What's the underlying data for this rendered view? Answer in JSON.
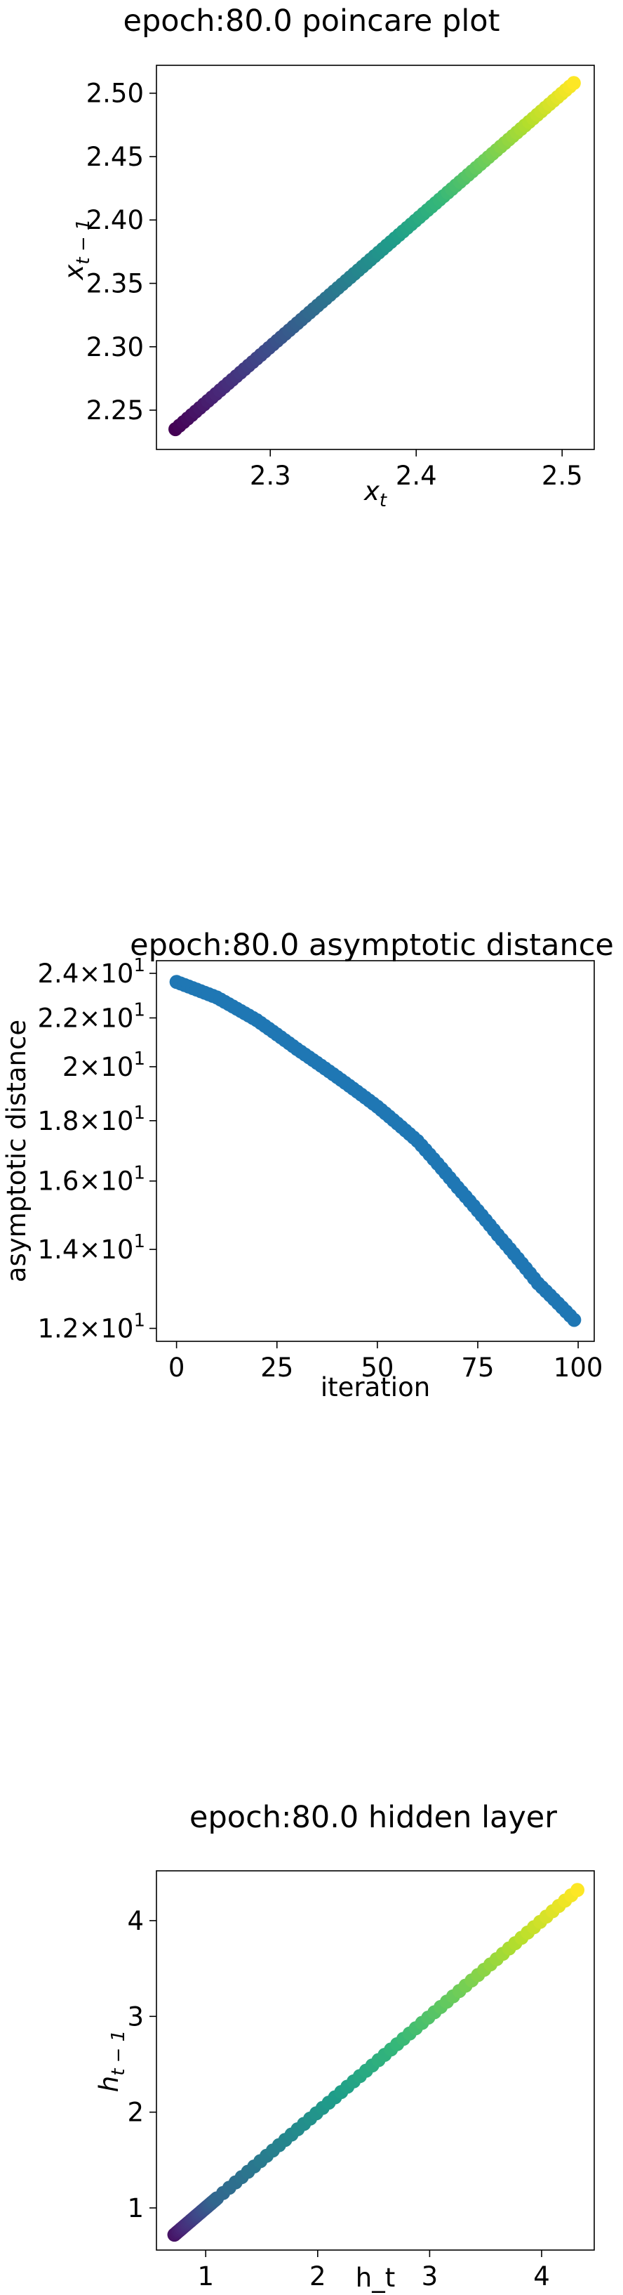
{
  "chart_data": [
    {
      "type": "scatter",
      "title": "epoch:80.0 poincare plot",
      "xlabel_main": "x",
      "xlabel_sub": "t",
      "ylabel_main": "x",
      "ylabel_sub": "t − 1",
      "xlim": [
        2.222,
        2.522
      ],
      "ylim": [
        2.219,
        2.522
      ],
      "xticks": [
        {
          "v": 2.3,
          "t": "2.3"
        },
        {
          "v": 2.4,
          "t": "2.4"
        },
        {
          "v": 2.5,
          "t": "2.5"
        }
      ],
      "yticks": [
        {
          "v": 2.25,
          "t": "2.25"
        },
        {
          "v": 2.3,
          "t": "2.30"
        },
        {
          "v": 2.35,
          "t": "2.35"
        },
        {
          "v": 2.4,
          "t": "2.40"
        },
        {
          "v": 2.45,
          "t": "2.45"
        },
        {
          "v": 2.5,
          "t": "2.50"
        }
      ],
      "colormap": "viridis",
      "x_start": 2.235,
      "x_end": 2.508,
      "n_points": 99
    },
    {
      "type": "scatter",
      "title": "epoch:80.0 asymptotic distance",
      "xlabel": "iteration",
      "ylabel": "asymptotic distance",
      "yscale": "log",
      "xlim": [
        -5,
        104
      ],
      "ylim": [
        11.7,
        24.6
      ],
      "xticks": [
        {
          "v": 0,
          "t": "0"
        },
        {
          "v": 25,
          "t": "25"
        },
        {
          "v": 50,
          "t": "50"
        },
        {
          "v": 75,
          "t": "75"
        },
        {
          "v": 100,
          "t": "100"
        }
      ],
      "yticks": [
        {
          "v": 12,
          "m": "1.2",
          "e": "1"
        },
        {
          "v": 14,
          "m": "1.4",
          "e": "1"
        },
        {
          "v": 16,
          "m": "1.6",
          "e": "1"
        },
        {
          "v": 18,
          "m": "1.8",
          "e": "1"
        },
        {
          "v": 20,
          "m": "2",
          "e": "1"
        },
        {
          "v": 22,
          "m": "2.2",
          "e": "1"
        },
        {
          "v": 24,
          "m": "2.4",
          "e": "1"
        }
      ],
      "color": "#1f77b4",
      "x": [
        0,
        10,
        20,
        30,
        40,
        50,
        60,
        70,
        80,
        90,
        99
      ],
      "y": [
        23.6,
        22.9,
        21.9,
        20.7,
        19.6,
        18.5,
        17.3,
        15.8,
        14.4,
        13.1,
        12.2
      ]
    },
    {
      "type": "scatter",
      "title": "epoch:80.0 hidden layer",
      "xlabel": "h_t",
      "ylabel_main": "h",
      "ylabel_sub": "t − 1",
      "xlim": [
        0.56,
        4.47
      ],
      "ylim": [
        0.56,
        4.52
      ],
      "xticks": [
        {
          "v": 1,
          "t": "1"
        },
        {
          "v": 2,
          "t": "2"
        },
        {
          "v": 3,
          "t": "3"
        },
        {
          "v": 4,
          "t": "4"
        }
      ],
      "yticks": [
        {
          "v": 1,
          "t": "1"
        },
        {
          "v": 2,
          "t": "2"
        },
        {
          "v": 3,
          "t": "3"
        },
        {
          "v": 4,
          "t": "4"
        }
      ],
      "colormap": "viridis",
      "dense_segment": {
        "from": 0.72,
        "to": 1.1,
        "n_points": 30
      },
      "sparse_segment": {
        "from": 1.1,
        "to": 4.32,
        "n_points": 58
      }
    }
  ]
}
